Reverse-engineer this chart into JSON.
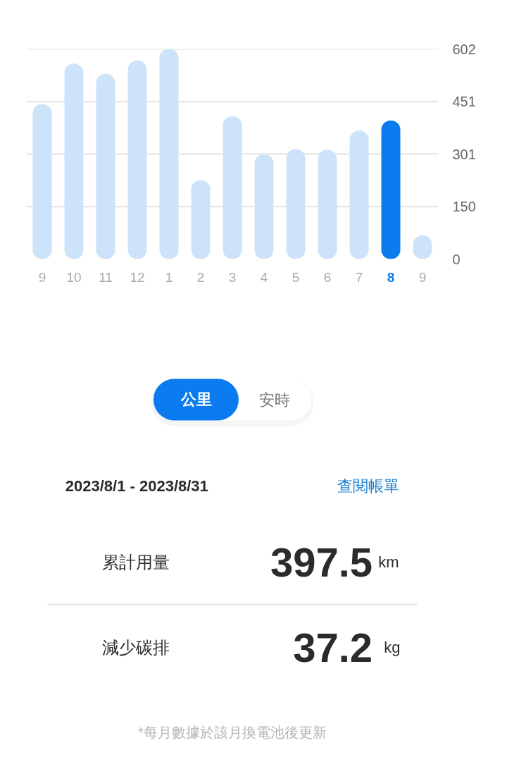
{
  "chart_data": [
    {
      "type": "bar",
      "categories": [
        "9",
        "10",
        "11",
        "12",
        "1",
        "2",
        "3",
        "4",
        "5",
        "6",
        "7",
        "8",
        "9"
      ],
      "values": [
        444,
        560,
        531,
        569,
        602,
        226,
        409,
        300,
        315,
        313,
        368,
        397,
        68
      ],
      "colors": [
        "#cde3f9",
        "#cde3f9",
        "#cde3f9",
        "#cde3f9",
        "#cde3f9",
        "#cde3f9",
        "#cde3f9",
        "#cde3f9",
        "#cde3f9",
        "#cde3f9",
        "#cde3f9",
        "#0a7cf0",
        "#cde3f9"
      ],
      "ylim": [
        0,
        602
      ],
      "yticks": [
        0,
        150,
        301,
        451,
        602
      ],
      "grid": "y"
    },
    {
      "type": "other",
      "annotations": [
        "公里",
        "安時",
        "2023/8/1 - 2023/8/31",
        "查閱帳單",
        "累計用量",
        "397.5",
        "km",
        "減少碳排",
        "37.2",
        "kg",
        "*每月數據於該月換電池後更新"
      ]
    }
  ]
}
